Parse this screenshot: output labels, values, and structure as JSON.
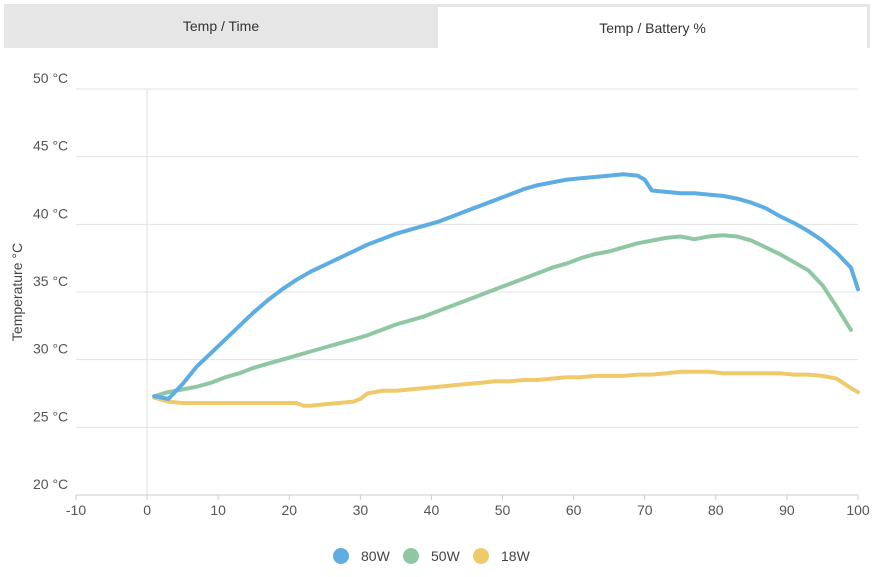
{
  "tabs": [
    {
      "label": "Temp / Time",
      "active": false
    },
    {
      "label": "Temp / Battery %",
      "active": true
    }
  ],
  "chart_data": {
    "type": "line",
    "title": "",
    "xlabel": "",
    "ylabel": "Temperature °C",
    "xlim": [
      -10,
      100
    ],
    "ylim": [
      20,
      50
    ],
    "x_ticks": [
      -10,
      0,
      10,
      20,
      30,
      40,
      50,
      60,
      70,
      80,
      90,
      100
    ],
    "x_tick_labels": [
      "-10",
      "0",
      "10",
      "20",
      "30",
      "40",
      "50",
      "60",
      "70",
      "80",
      "90",
      "100"
    ],
    "y_ticks": [
      20,
      25,
      30,
      35,
      40,
      45,
      50
    ],
    "y_tick_labels": [
      "20 °C",
      "25 °C",
      "30 °C",
      "35 °C",
      "40 °C",
      "45 °C",
      "50 °C"
    ],
    "grid": true,
    "legend": "bottom-center",
    "series": [
      {
        "name": "80W",
        "color": "#5dade2",
        "x": [
          1,
          3,
          5,
          7,
          9,
          11,
          13,
          15,
          17,
          19,
          21,
          23,
          25,
          27,
          29,
          31,
          33,
          35,
          37,
          39,
          41,
          43,
          45,
          47,
          49,
          51,
          53,
          55,
          57,
          59,
          61,
          63,
          65,
          67,
          69,
          70,
          71,
          73,
          75,
          77,
          79,
          81,
          83,
          85,
          87,
          89,
          91,
          93,
          95,
          97,
          99,
          100
        ],
        "y": [
          27.3,
          27.1,
          28.2,
          29.5,
          30.5,
          31.5,
          32.5,
          33.5,
          34.4,
          35.2,
          35.9,
          36.5,
          37.0,
          37.5,
          38.0,
          38.5,
          38.9,
          39.3,
          39.6,
          39.9,
          40.2,
          40.6,
          41.0,
          41.4,
          41.8,
          42.2,
          42.6,
          42.9,
          43.1,
          43.3,
          43.4,
          43.5,
          43.6,
          43.7,
          43.6,
          43.3,
          42.5,
          42.4,
          42.3,
          42.3,
          42.2,
          42.1,
          41.9,
          41.6,
          41.2,
          40.6,
          40.1,
          39.5,
          38.8,
          37.9,
          36.8,
          35.2
        ]
      },
      {
        "name": "50W",
        "color": "#8fc7a4",
        "x": [
          1,
          3,
          5,
          7,
          9,
          11,
          13,
          15,
          17,
          19,
          21,
          23,
          25,
          27,
          29,
          31,
          33,
          35,
          37,
          39,
          41,
          43,
          45,
          47,
          49,
          51,
          53,
          55,
          57,
          59,
          61,
          63,
          65,
          67,
          69,
          71,
          73,
          75,
          77,
          79,
          81,
          83,
          85,
          87,
          89,
          91,
          93,
          95,
          97,
          99
        ],
        "y": [
          27.3,
          27.6,
          27.8,
          28.0,
          28.3,
          28.7,
          29.0,
          29.4,
          29.7,
          30.0,
          30.3,
          30.6,
          30.9,
          31.2,
          31.5,
          31.8,
          32.2,
          32.6,
          32.9,
          33.2,
          33.6,
          34.0,
          34.4,
          34.8,
          35.2,
          35.6,
          36.0,
          36.4,
          36.8,
          37.1,
          37.5,
          37.8,
          38.0,
          38.3,
          38.6,
          38.8,
          39.0,
          39.1,
          38.9,
          39.1,
          39.2,
          39.1,
          38.8,
          38.3,
          37.8,
          37.2,
          36.6,
          35.5,
          33.9,
          32.2
        ]
      },
      {
        "name": "18W",
        "color": "#f0c96a",
        "x": [
          1,
          3,
          5,
          7,
          9,
          11,
          13,
          15,
          17,
          19,
          21,
          22,
          23,
          25,
          27,
          29,
          30,
          31,
          33,
          35,
          37,
          39,
          41,
          43,
          45,
          47,
          49,
          51,
          53,
          55,
          57,
          59,
          61,
          63,
          65,
          67,
          69,
          71,
          73,
          75,
          77,
          79,
          81,
          83,
          85,
          87,
          89,
          91,
          93,
          95,
          97,
          99,
          100
        ],
        "y": [
          27.2,
          26.9,
          26.8,
          26.8,
          26.8,
          26.8,
          26.8,
          26.8,
          26.8,
          26.8,
          26.8,
          26.6,
          26.6,
          26.7,
          26.8,
          26.9,
          27.1,
          27.5,
          27.7,
          27.7,
          27.8,
          27.9,
          28.0,
          28.1,
          28.2,
          28.3,
          28.4,
          28.4,
          28.5,
          28.5,
          28.6,
          28.7,
          28.7,
          28.8,
          28.8,
          28.8,
          28.9,
          28.9,
          29.0,
          29.1,
          29.1,
          29.1,
          29.0,
          29.0,
          29.0,
          29.0,
          29.0,
          28.9,
          28.9,
          28.8,
          28.6,
          27.9,
          27.6
        ]
      }
    ]
  }
}
